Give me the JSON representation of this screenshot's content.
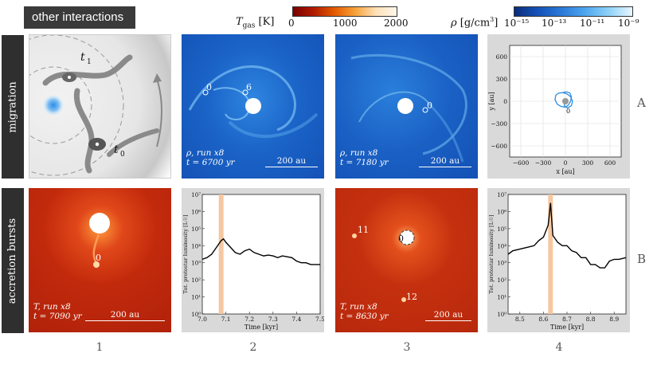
{
  "header": {
    "tag": "other interactions",
    "colorbar_T": {
      "label": "T_gas [K]",
      "ticks": [
        "0",
        "1000",
        "2000"
      ],
      "range": [
        0,
        2000
      ]
    },
    "colorbar_rho": {
      "label": "ρ [g/cm³]",
      "ticks": [
        "10⁻¹⁵",
        "10⁻¹³",
        "10⁻¹¹",
        "10⁻⁹"
      ],
      "range_log": [
        -15,
        -9
      ]
    }
  },
  "rows": [
    {
      "label": "migration",
      "letter": "A"
    },
    {
      "label": "accretion bursts",
      "letter": "B"
    }
  ],
  "columns": [
    "1",
    "2",
    "3",
    "4"
  ],
  "sketch": {
    "t1": "t",
    "t1_sub": "1",
    "t0": "t",
    "t0_sub": "0"
  },
  "panels": {
    "A2": {
      "line1": "ρ, run x8",
      "line2": "t = 6700 yr",
      "scale": "200 au",
      "labels": [
        "0",
        "6"
      ]
    },
    "A3": {
      "line1": "ρ, run x8",
      "line2": "t = 7180 yr",
      "scale": "200 au",
      "labels": [
        "0"
      ]
    },
    "B1": {
      "line1": "T, run x8",
      "line2": "t = 7090 yr",
      "scale": "200 au",
      "labels": [
        "0"
      ]
    },
    "B3": {
      "line1": "T, run x8",
      "line2": "t = 8630 yr",
      "scale": "200 au",
      "labels": [
        "11",
        "0",
        "12"
      ]
    }
  },
  "chart_data": [
    {
      "type": "line",
      "panel": "A4",
      "xlabel": "x [au]",
      "ylabel": "y [au]",
      "xlim": [
        -750,
        750
      ],
      "ylim": [
        -750,
        750
      ],
      "xticks": [
        "−600",
        "−300",
        "0",
        "300",
        "600"
      ],
      "yticks": [
        "600",
        "300",
        "0",
        "−300",
        "−600"
      ],
      "grid": true,
      "annotation": "0",
      "series": [
        {
          "color": "#2f8de0",
          "x": [
            -30,
            20,
            60,
            80,
            70,
            40,
            0,
            -60,
            -110,
            -140,
            -130,
            -90,
            -40,
            20,
            70,
            95,
            80,
            30,
            -10,
            -20
          ],
          "y": [
            120,
            125,
            110,
            60,
            0,
            -50,
            -80,
            -70,
            -40,
            20,
            80,
            110,
            115,
            100,
            60,
            0,
            -60,
            -90,
            -70,
            -10
          ]
        }
      ]
    },
    {
      "type": "line",
      "panel": "B2",
      "xlabel": "Time [kyr]",
      "ylabel": "Tot. protostar luminosity [L☉]",
      "xlim": [
        7.0,
        7.5
      ],
      "ylim_log": [
        0,
        7
      ],
      "xticks": [
        "7.0",
        "7.1",
        "7.2",
        "7.3",
        "7.4",
        "7.5"
      ],
      "yticks": [
        "10⁰",
        "10¹",
        "10²",
        "10³",
        "10⁴",
        "10⁵",
        "10⁶",
        "10⁷"
      ],
      "highlight": [
        7.07,
        7.09
      ],
      "series": [
        {
          "x": [
            7.0,
            7.02,
            7.04,
            7.06,
            7.08,
            7.09,
            7.1,
            7.12,
            7.14,
            7.16,
            7.18,
            7.2,
            7.22,
            7.24,
            7.26,
            7.28,
            7.3,
            7.32,
            7.34,
            7.36,
            7.38,
            7.4,
            7.42,
            7.44,
            7.46,
            7.48,
            7.5
          ],
          "log_y": [
            3.2,
            3.3,
            3.5,
            3.9,
            4.3,
            4.4,
            4.2,
            3.9,
            3.6,
            3.5,
            3.7,
            3.8,
            3.6,
            3.5,
            3.4,
            3.45,
            3.4,
            3.3,
            3.4,
            3.35,
            3.3,
            3.1,
            3.0,
            3.0,
            2.9,
            2.9,
            2.9
          ]
        }
      ]
    },
    {
      "type": "line",
      "panel": "B4",
      "xlabel": "Time [kyr]",
      "ylabel": "Tot. protostar luminosity [L☉]",
      "xlim": [
        8.45,
        8.95
      ],
      "ylim_log": [
        0,
        7
      ],
      "xticks": [
        "8.5",
        "8.6",
        "8.7",
        "8.8",
        "8.9"
      ],
      "yticks": [
        "10⁰",
        "10¹",
        "10²",
        "10³",
        "10⁴",
        "10⁵",
        "10⁶",
        "10⁷"
      ],
      "highlight": [
        8.62,
        8.64
      ],
      "series": [
        {
          "x": [
            8.45,
            8.47,
            8.5,
            8.53,
            8.56,
            8.58,
            8.6,
            8.62,
            8.63,
            8.64,
            8.66,
            8.68,
            8.7,
            8.72,
            8.74,
            8.76,
            8.78,
            8.8,
            8.82,
            8.84,
            8.86,
            8.88,
            8.9,
            8.92,
            8.95
          ],
          "log_y": [
            3.5,
            3.7,
            3.8,
            3.9,
            4.0,
            4.3,
            4.5,
            5.2,
            6.5,
            4.6,
            4.2,
            4.0,
            4.0,
            3.7,
            3.6,
            3.3,
            3.3,
            2.9,
            2.9,
            2.7,
            2.7,
            3.1,
            3.2,
            3.2,
            3.3
          ]
        }
      ]
    }
  ]
}
